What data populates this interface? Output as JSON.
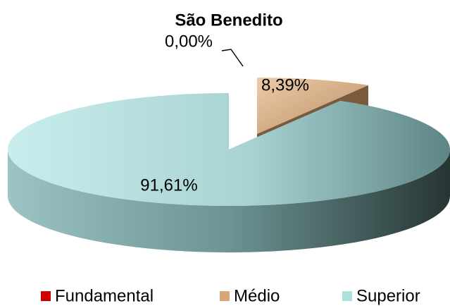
{
  "chart_data": {
    "type": "pie3d",
    "title": "São Benedito",
    "categories": [
      "Fundamental",
      "Médio",
      "Superior"
    ],
    "values": [
      0,
      8.39,
      91.61
    ],
    "value_labels": [
      "0,00%",
      "8,39%",
      "91,61%"
    ],
    "colors": [
      "#cc0000",
      "#d9a67a",
      "#aee0e0"
    ],
    "legend": "bottom"
  }
}
